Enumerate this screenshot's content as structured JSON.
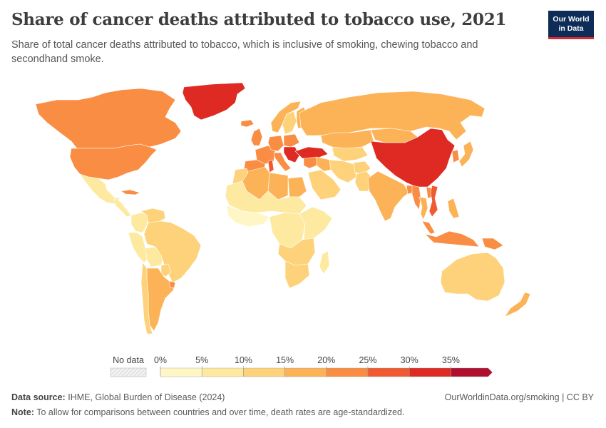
{
  "header": {
    "title": "Share of cancer deaths attributed to tobacco use, 2021",
    "subtitle": "Share of total cancer deaths attributed to tobacco, which is inclusive of smoking, chewing tobacco and secondhand smoke."
  },
  "logo": {
    "line1": "Our World",
    "line2": "in Data",
    "bg": "#0d2c57",
    "accent": "#d8292f"
  },
  "legend": {
    "no_data_label": "No data",
    "ticks": [
      "0%",
      "5%",
      "10%",
      "15%",
      "20%",
      "25%",
      "30%",
      "35%"
    ],
    "bins": [
      {
        "from": 0,
        "to": 5,
        "color": "#fef7c5"
      },
      {
        "from": 5,
        "to": 10,
        "color": "#fde9a0"
      },
      {
        "from": 10,
        "to": 15,
        "color": "#fdd27a"
      },
      {
        "from": 15,
        "to": 20,
        "color": "#fcb358"
      },
      {
        "from": 20,
        "to": 25,
        "color": "#f98d43"
      },
      {
        "from": 25,
        "to": 30,
        "color": "#f05a31"
      },
      {
        "from": 30,
        "to": 35,
        "color": "#de2a22"
      },
      {
        "from": 35,
        "to": null,
        "color": "#b01030"
      }
    ]
  },
  "footer": {
    "source_label": "Data source:",
    "source_text": "IHME, Global Burden of Disease (2024)",
    "url": "OurWorldinData.org/smoking | CC BY",
    "note_label": "Note:",
    "note_text": "To allow for comparisons between countries and over time, death rates are age-standardized."
  },
  "map_data": {
    "unit": "%",
    "regions": [
      {
        "name": "Greenland",
        "value": 32
      },
      {
        "name": "Canada",
        "value": 22
      },
      {
        "name": "United States",
        "value": 23
      },
      {
        "name": "Mexico",
        "value": 8
      },
      {
        "name": "Cuba",
        "value": 24
      },
      {
        "name": "Central America",
        "value": 8
      },
      {
        "name": "Colombia",
        "value": 9
      },
      {
        "name": "Venezuela",
        "value": 10
      },
      {
        "name": "Peru",
        "value": 6
      },
      {
        "name": "Bolivia",
        "value": 6
      },
      {
        "name": "Brazil",
        "value": 12
      },
      {
        "name": "Paraguay",
        "value": 12
      },
      {
        "name": "Argentina",
        "value": 19
      },
      {
        "name": "Chile",
        "value": 12
      },
      {
        "name": "Uruguay",
        "value": 21
      },
      {
        "name": "Iceland",
        "value": 20
      },
      {
        "name": "Norway",
        "value": 18
      },
      {
        "name": "Sweden",
        "value": 14
      },
      {
        "name": "Finland",
        "value": 16
      },
      {
        "name": "United Kingdom",
        "value": 21
      },
      {
        "name": "France",
        "value": 22
      },
      {
        "name": "Spain",
        "value": 22
      },
      {
        "name": "Germany",
        "value": 22
      },
      {
        "name": "Poland",
        "value": 23
      },
      {
        "name": "Italy",
        "value": 20
      },
      {
        "name": "Balkans",
        "value": 30
      },
      {
        "name": "Turkey",
        "value": 31
      },
      {
        "name": "Russia",
        "value": 18
      },
      {
        "name": "Kazakhstan",
        "value": 17
      },
      {
        "name": "Central Asia",
        "value": 13
      },
      {
        "name": "Mongolia",
        "value": 15
      },
      {
        "name": "China",
        "value": 32
      },
      {
        "name": "Korea",
        "value": 20
      },
      {
        "name": "Japan",
        "value": 19
      },
      {
        "name": "Iran",
        "value": 12
      },
      {
        "name": "Saudi Arabia",
        "value": 10
      },
      {
        "name": "Iraq",
        "value": 18
      },
      {
        "name": "Syria",
        "value": 24
      },
      {
        "name": "Egypt",
        "value": 17
      },
      {
        "name": "Libya",
        "value": 19
      },
      {
        "name": "Algeria",
        "value": 15
      },
      {
        "name": "Morocco",
        "value": 14
      },
      {
        "name": "Tunisia",
        "value": 26
      },
      {
        "name": "Sahel",
        "value": 5
      },
      {
        "name": "West Africa",
        "value": 4
      },
      {
        "name": "Central Africa",
        "value": 5
      },
      {
        "name": "East Africa",
        "value": 5
      },
      {
        "name": "Southern Africa",
        "value": 10
      },
      {
        "name": "South Africa",
        "value": 12
      },
      {
        "name": "Madagascar",
        "value": 8
      },
      {
        "name": "Afghanistan",
        "value": 10
      },
      {
        "name": "Pakistan",
        "value": 12
      },
      {
        "name": "India",
        "value": 17
      },
      {
        "name": "Bangladesh",
        "value": 21
      },
      {
        "name": "Myanmar",
        "value": 21
      },
      {
        "name": "Thailand",
        "value": 19
      },
      {
        "name": "Laos",
        "value": 21
      },
      {
        "name": "Vietnam",
        "value": 29
      },
      {
        "name": "Philippines",
        "value": 19
      },
      {
        "name": "Malaysia",
        "value": 20
      },
      {
        "name": "Indonesia",
        "value": 20
      },
      {
        "name": "Papua New Guinea",
        "value": 21
      },
      {
        "name": "Australia",
        "value": 13
      },
      {
        "name": "New Zealand",
        "value": 19
      }
    ]
  }
}
